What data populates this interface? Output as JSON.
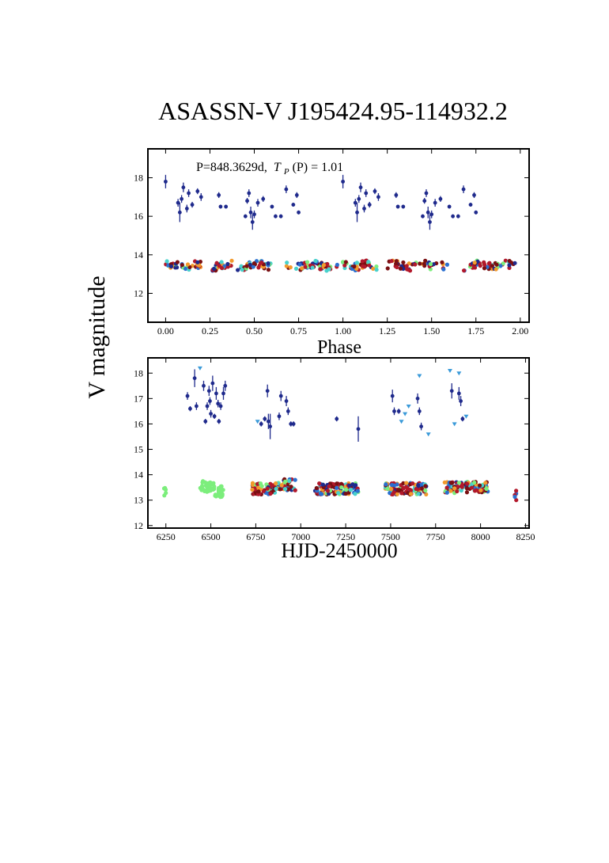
{
  "figure": {
    "title": "ASASSN-V J195424.95-114932.2",
    "ylabel": "V magnitude"
  },
  "colors": {
    "dark_blue": "#1f2a8c",
    "mid_blue": "#2a6fd0",
    "light_blue": "#3a9ad9",
    "green": "#7cee7c",
    "orange": "#f39a2c",
    "red": "#b2182b",
    "dark_red": "#7a0f12",
    "cyan": "#48d1cc"
  },
  "chart_data": [
    {
      "type": "scatter",
      "panel": "phase",
      "annotation_prefix": "P=848.3629d,",
      "annotation_tp": "T",
      "annotation_sub": "P",
      "annotation_rest": "(P) = 1.01",
      "xlabel": "Phase",
      "xlim": [
        -0.1,
        2.05
      ],
      "ylim": [
        19.5,
        10.5
      ],
      "y_reversed": true,
      "xticks": [
        "0.00",
        "0.25",
        "0.50",
        "0.75",
        "1.00",
        "1.25",
        "1.50",
        "1.75",
        "2.00"
      ],
      "xtick_values": [
        0.0,
        0.25,
        0.5,
        0.75,
        1.0,
        1.25,
        1.5,
        1.75,
        2.0
      ],
      "yticks": [
        "12",
        "14",
        "16",
        "18"
      ],
      "ytick_values": [
        12,
        14,
        16,
        18
      ],
      "bright_band": {
        "mag_center": 13.45,
        "mag_amplitude": 0.2,
        "gaps": [
          [
            0.2,
            0.25
          ],
          [
            0.6,
            0.68
          ],
          [
            0.97,
            1.02
          ]
        ]
      },
      "faint_points": [
        [
          0.0,
          17.8,
          0.35
        ],
        [
          0.07,
          16.7,
          0.2
        ],
        [
          0.08,
          16.2,
          0.5
        ],
        [
          0.09,
          16.9,
          0.2
        ],
        [
          0.1,
          17.5,
          0.25
        ],
        [
          0.12,
          16.4,
          0.2
        ],
        [
          0.13,
          17.2,
          0.2
        ],
        [
          0.15,
          16.6,
          0.15
        ],
        [
          0.18,
          17.3,
          0.15
        ],
        [
          0.2,
          17.0,
          0.2
        ],
        [
          0.3,
          17.1,
          0.15
        ],
        [
          0.31,
          16.5,
          0.1
        ],
        [
          0.34,
          16.5,
          0.1
        ],
        [
          0.45,
          16.0,
          0.1
        ],
        [
          0.46,
          16.8,
          0.15
        ],
        [
          0.47,
          17.2,
          0.2
        ],
        [
          0.48,
          16.2,
          0.3
        ],
        [
          0.49,
          15.7,
          0.4
        ],
        [
          0.5,
          16.1,
          0.2
        ],
        [
          0.52,
          16.7,
          0.2
        ],
        [
          0.55,
          16.9,
          0.15
        ],
        [
          0.6,
          16.5,
          0.1
        ],
        [
          0.62,
          16.0,
          0.1
        ],
        [
          0.65,
          16.0,
          0.1
        ],
        [
          0.68,
          17.4,
          0.2
        ],
        [
          0.72,
          16.6,
          0.1
        ],
        [
          0.74,
          17.1,
          0.15
        ],
        [
          0.75,
          16.2,
          0.1
        ]
      ]
    },
    {
      "type": "scatter",
      "panel": "time",
      "xlabel": "HJD-2450000",
      "xlim": [
        6150,
        8270
      ],
      "ylim": [
        18.6,
        11.9
      ],
      "y_reversed": true,
      "xticks": [
        "6250",
        "6500",
        "6750",
        "7000",
        "7250",
        "7500",
        "7750",
        "8000",
        "8250"
      ],
      "xtick_values": [
        6250,
        6500,
        6750,
        7000,
        7250,
        7500,
        7750,
        8000,
        8250
      ],
      "yticks": [
        "12",
        "13",
        "14",
        "15",
        "16",
        "17",
        "18"
      ],
      "ytick_values": [
        12,
        13,
        14,
        15,
        16,
        17,
        18
      ],
      "bright_segments": [
        {
          "x": [
            6240,
            6250
          ],
          "mag": 13.3,
          "color": "green"
        },
        {
          "x": [
            6440,
            6520
          ],
          "mag": 13.55,
          "color": "green"
        },
        {
          "x": [
            6520,
            6570
          ],
          "mag": 13.35,
          "color": "green"
        },
        {
          "x": [
            6730,
            6860
          ],
          "mag": 13.45,
          "color": "mixed"
        },
        {
          "x": [
            6860,
            6970
          ],
          "mag": 13.6,
          "color": "mixed"
        },
        {
          "x": [
            7080,
            7320
          ],
          "mag": 13.45,
          "color": "mixed"
        },
        {
          "x": [
            7470,
            7700
          ],
          "mag": 13.45,
          "color": "mixed"
        },
        {
          "x": [
            7800,
            8040
          ],
          "mag": 13.5,
          "color": "mixed"
        },
        {
          "x": [
            8190,
            8200
          ],
          "mag": 13.2,
          "color": "mixed"
        }
      ],
      "faint_points": [
        [
          6370,
          17.1,
          0.15
        ],
        [
          6385,
          16.6,
          0.1
        ],
        [
          6410,
          17.8,
          0.35
        ],
        [
          6420,
          16.7,
          0.15
        ],
        [
          6460,
          17.5,
          0.2
        ],
        [
          6470,
          16.1,
          0.1
        ],
        [
          6480,
          16.7,
          0.15
        ],
        [
          6490,
          17.3,
          0.2
        ],
        [
          6495,
          16.9,
          0.15
        ],
        [
          6500,
          16.4,
          0.15
        ],
        [
          6510,
          17.6,
          0.3
        ],
        [
          6520,
          16.3,
          0.1
        ],
        [
          6530,
          17.2,
          0.25
        ],
        [
          6540,
          16.8,
          0.15
        ],
        [
          6545,
          16.1,
          0.1
        ],
        [
          6555,
          16.7,
          0.15
        ],
        [
          6570,
          17.2,
          0.25
        ],
        [
          6580,
          17.5,
          0.2
        ],
        [
          6780,
          16.0,
          0.1
        ],
        [
          6800,
          16.2,
          0.1
        ],
        [
          6815,
          17.3,
          0.25
        ],
        [
          6820,
          16.1,
          0.3
        ],
        [
          6830,
          15.9,
          0.5
        ],
        [
          6880,
          16.3,
          0.15
        ],
        [
          6890,
          17.1,
          0.2
        ],
        [
          6920,
          16.9,
          0.2
        ],
        [
          6930,
          16.5,
          0.15
        ],
        [
          6945,
          16.0,
          0.1
        ],
        [
          6960,
          16.0,
          0.1
        ],
        [
          7200,
          16.2,
          0.1
        ],
        [
          7320,
          15.8,
          0.5
        ],
        [
          7510,
          17.1,
          0.25
        ],
        [
          7520,
          16.5,
          0.15
        ],
        [
          7545,
          16.5,
          0.1
        ],
        [
          7650,
          17.0,
          0.2
        ],
        [
          7660,
          16.5,
          0.15
        ],
        [
          7670,
          15.9,
          0.15
        ],
        [
          7840,
          17.3,
          0.3
        ],
        [
          7880,
          17.2,
          0.25
        ],
        [
          7890,
          16.9,
          0.2
        ],
        [
          7900,
          16.2,
          0.1
        ]
      ],
      "upper_limits": [
        [
          6440,
          18.2
        ],
        [
          6760,
          16.1
        ],
        [
          7560,
          16.1
        ],
        [
          7580,
          16.4
        ],
        [
          7600,
          16.7
        ],
        [
          7660,
          17.9
        ],
        [
          7710,
          15.6
        ],
        [
          7830,
          18.1
        ],
        [
          7855,
          16.0
        ],
        [
          7880,
          18.0
        ],
        [
          7920,
          16.3
        ]
      ]
    }
  ]
}
